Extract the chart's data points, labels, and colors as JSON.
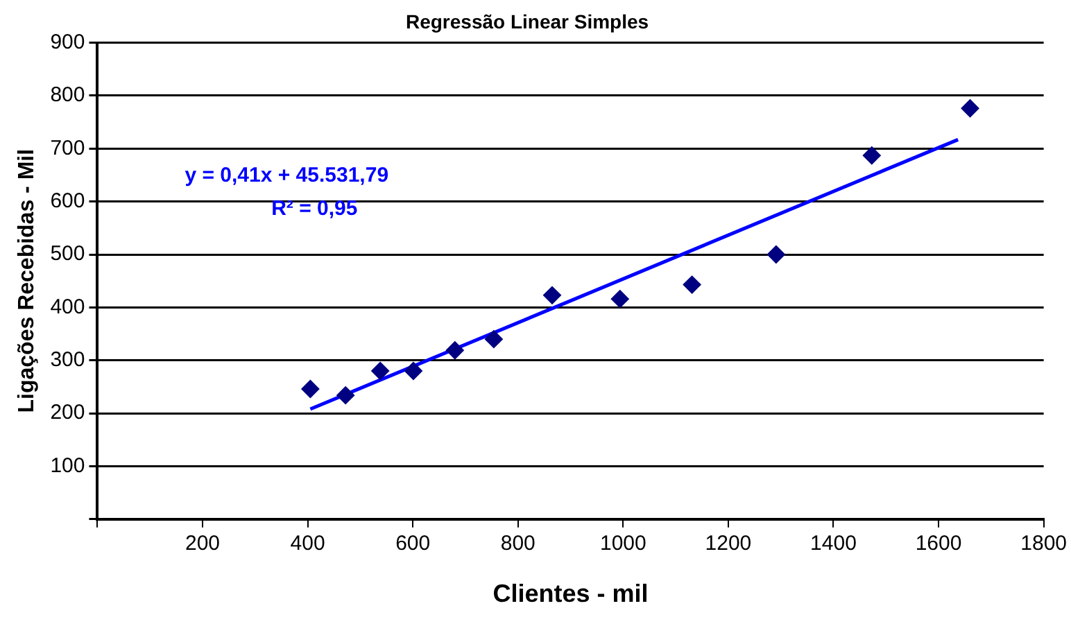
{
  "chart_data": {
    "type": "scatter",
    "title": "Regressão Linear Simples",
    "xlabel": "Clientes - mil",
    "ylabel": "Ligações Recebidas - Mil",
    "series": [
      {
        "color": "#000080",
        "marker": "diamond",
        "x": [
          405,
          472,
          538,
          601,
          680,
          754,
          865,
          994,
          1131,
          1291,
          1473,
          1660
        ],
        "values": [
          246,
          234,
          280,
          280,
          319,
          340,
          423,
          416,
          443,
          500,
          687,
          776
        ]
      },
      {
        "type": "line",
        "marker": "none",
        "color": "#0000ff",
        "x": [
          405,
          1637
        ],
        "values": [
          208,
          717
        ]
      }
    ],
    "xlim": [
      0,
      1800
    ],
    "xticks": [
      {
        "value": 0,
        "label": null
      },
      200,
      400,
      600,
      800,
      1000,
      1200,
      1400,
      1600,
      1800
    ],
    "ylim": [
      0,
      900
    ],
    "yticks": [
      {
        "value": 0,
        "label": null
      },
      100,
      200,
      300,
      400,
      500,
      600,
      700,
      800,
      900
    ],
    "grid": "y",
    "legend": false,
    "line_style": "solid",
    "annotations": [
      "y = 0,41x + 45.531,79",
      "R² = 0,95"
    ]
  }
}
